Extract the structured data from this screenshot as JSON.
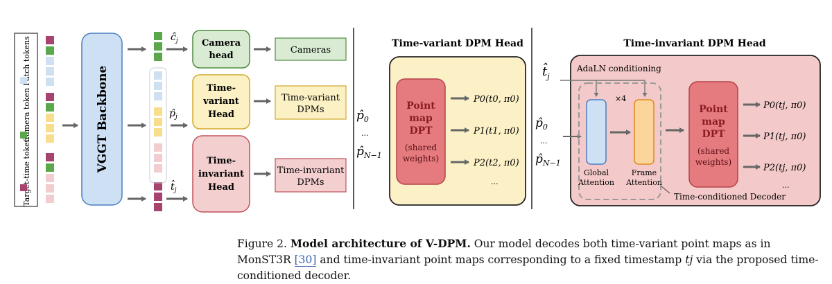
{
  "legend": {
    "patch_tokens": "Patch tokens",
    "camera_token": "Camera token",
    "target_time_token": "Target-time token"
  },
  "backbone": "VGGT Backbone",
  "labels": {
    "c_hat_j": "ĉ",
    "c_sub": "j",
    "p_hat_j": "p̂",
    "p_sub": "j",
    "t_hat_j": "t̂",
    "t_sub": "j"
  },
  "heads": {
    "camera": [
      "Camera",
      "head"
    ],
    "time_variant": [
      "Time-",
      "variant",
      "Head"
    ],
    "time_invariant": [
      "Time-",
      "invariant",
      "Head"
    ]
  },
  "outputs": {
    "cameras": "Cameras",
    "tv_dpms": [
      "Time-variant",
      "DPMs"
    ],
    "ti_dpms": [
      "Time-invariant",
      "DPMs"
    ]
  },
  "tv_head": {
    "title": "Time-variant DPM Head",
    "input_p0": "p̂",
    "input_p0_sub": "0",
    "input_dots": "...",
    "input_pn": "p̂",
    "input_pn_sub": "N−1",
    "dpt": [
      "Point",
      "map",
      "DPT"
    ],
    "shared": [
      "(shared",
      "weights)"
    ],
    "outputs": [
      "P0(t0, π0)",
      "P1(t1, π0)",
      "P2(t2, π0)"
    ],
    "dots": "..."
  },
  "ti_head": {
    "title": "Time-invariant DPM Head",
    "tj": "t̂",
    "tj_sub": "j",
    "adaln": "AdaLN conditioning",
    "times4": "×4",
    "input_p0": "p̂",
    "input_p0_sub": "0",
    "input_dots": "...",
    "input_pn": "p̂",
    "input_pn_sub": "N−1",
    "global_attention": [
      "Global",
      "Attention"
    ],
    "frame_attention": [
      "Frame",
      "Attention"
    ],
    "decoder_label": "Time-conditioned Decoder",
    "dpt": [
      "Point",
      "map",
      "DPT"
    ],
    "shared": [
      "(shared",
      "weights)"
    ],
    "outputs": [
      "P0(tj, π0)",
      "P1(tj, π0)",
      "P2(tj, π0)"
    ],
    "dots": "..."
  },
  "caption": {
    "figure": "Figure 2.",
    "title": "Model architecture of V-DPM.",
    "text1": "Our model decodes both time-variant point maps as in MonST3R",
    "ref": "[30]",
    "text2": "and time-invariant point maps corresponding to a fixed timestamp",
    "tj": "tj",
    "text3": "via the proposed time-conditioned decoder."
  },
  "colors": {
    "purple_token": "#a6436f",
    "green_token": "#5aa84b",
    "blue_token": "#cfe0f3",
    "yellow_token": "#f7dd8c",
    "pink_token": "#f1cdd0",
    "backbone": "#cde0f4",
    "camera_box": "#d9ecd3",
    "tv_box": "#fbf1c4",
    "ti_box": "#f3cfd0",
    "dpt_red": "#e57b7f",
    "ti_panel": "#f3c9c9",
    "arrow": "#666666"
  }
}
